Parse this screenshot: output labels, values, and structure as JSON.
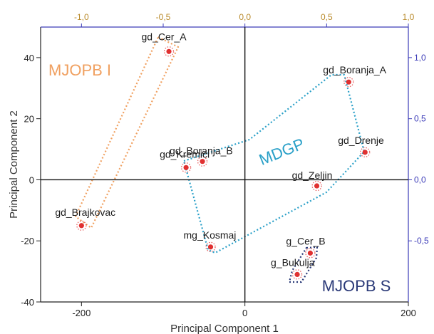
{
  "chart_data": {
    "type": "scatter",
    "title": "",
    "xlabel": "Principal Component 1",
    "ylabel": "Principal Component 2",
    "xlim": [
      -250,
      200
    ],
    "ylim": [
      -40,
      50
    ],
    "x_ticks": [
      -200,
      0,
      200
    ],
    "x_tick_labels": [
      "-200",
      "0",
      "200"
    ],
    "y_ticks": [
      -40,
      -20,
      0,
      20,
      40
    ],
    "y_tick_labels": [
      "-40",
      "-20",
      "0",
      "20",
      "40"
    ],
    "top_axis": {
      "ticks": [
        -1.0,
        -0.5,
        0.0,
        0.5,
        1.0
      ],
      "tick_labels": [
        "-1,0",
        "-0,5",
        "0,0",
        "0,5",
        "1,0"
      ],
      "color": "#3b3bb8"
    },
    "right_axis": {
      "ticks": [
        -0.5,
        0.0,
        0.5,
        1.0
      ],
      "tick_labels": [
        "-0,5",
        "0,0",
        "0,5",
        "1,0"
      ],
      "color": "#3b3bb8"
    },
    "points": [
      {
        "label": "gd_Cer_A",
        "x": -93,
        "y": 42
      },
      {
        "label": "gd_Brajkovac",
        "x": -200,
        "y": -15
      },
      {
        "label": "gd_Boranja_A",
        "x": 127,
        "y": 32
      },
      {
        "label": "gd_Drenje",
        "x": 147,
        "y": 9
      },
      {
        "label": "gd_Boranja_B",
        "x": -52,
        "y": 6
      },
      {
        "label": "gd_Kremici",
        "x": -72,
        "y": 4
      },
      {
        "label": "gd_Zeljin",
        "x": 88,
        "y": -2
      },
      {
        "label": "mg_Kosmaj",
        "x": -42,
        "y": -22
      },
      {
        "label": "g_Cer_B",
        "x": 80,
        "y": -24
      },
      {
        "label": "g_Bukulja",
        "x": 64,
        "y": -31
      }
    ],
    "groups": [
      {
        "name": "MJOPB I",
        "color": "#f0a060",
        "members": [
          "gd_Cer_A",
          "gd_Brajkovac"
        ]
      },
      {
        "name": "MDGP",
        "color": "#2aa0c8",
        "members": [
          "gd_Boranja_A",
          "gd_Drenje",
          "gd_Boranja_B",
          "gd_Kremici",
          "gd_Zeljin",
          "mg_Kosmaj"
        ]
      },
      {
        "name": "MJOPB S",
        "color": "#2b3a78",
        "members": [
          "g_Cer_B",
          "g_Bukulja"
        ]
      }
    ],
    "point_color": "#e03030",
    "grid": false,
    "legend": "none"
  }
}
